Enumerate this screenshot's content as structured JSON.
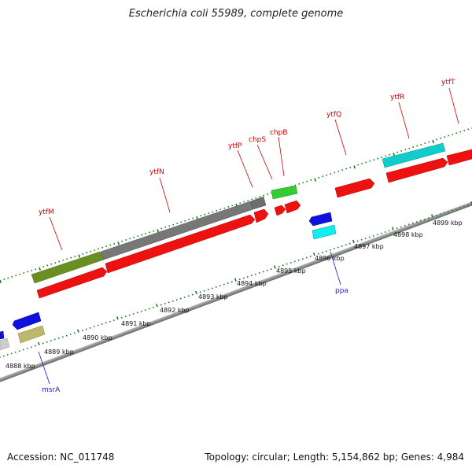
{
  "title": "Escherichia coli 55989, complete genome",
  "footer": {
    "accession": "Accession: NC_011748",
    "summary": "Topology: circular; Length: 5,154,862 bp; Genes: 4,984"
  },
  "scale_labels": [
    "4888 kbp",
    "4889 kbp",
    "4890 kbp",
    "4891 kbp",
    "4892 kbp",
    "4893 kbp",
    "4894 kbp",
    "4895 kbp",
    "4896 kbp",
    "4897 kbp",
    "4898 kbp",
    "4899 kbp"
  ],
  "gene_labels": {
    "ytfM": "ytfM",
    "ytfN": "ytfN",
    "ytfP": "ytfP",
    "chpS": "chpS",
    "chpB": "chpB",
    "ytfQ": "ytfQ",
    "ytfR": "ytfR",
    "ytfT": "ytfT",
    "ppa": "ppa",
    "msrA": "msrA"
  },
  "colors": {
    "forward_cds": "#ee1111",
    "reverse_cds": "#1111dd",
    "cog_olive": "#6b8e23",
    "cog_gray": "#777777",
    "cog_green": "#33cc33",
    "cog_cyan": "#11cccc",
    "cog_khaki": "#bdb76b",
    "tick_green": "#1a7a1a",
    "backbone": "#888888"
  }
}
